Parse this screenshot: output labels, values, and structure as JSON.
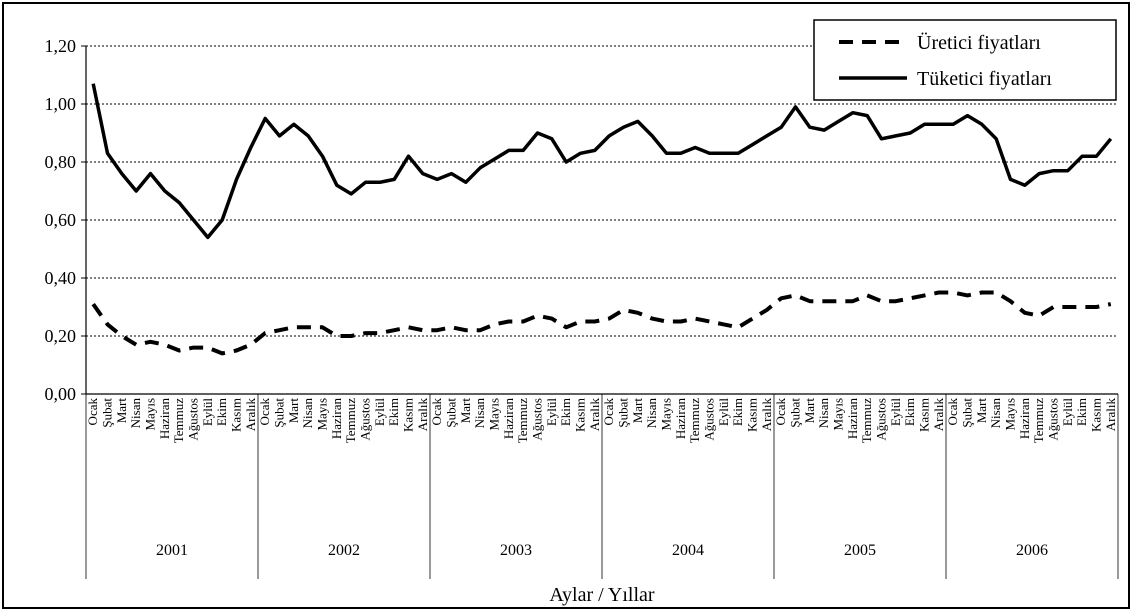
{
  "chart_data": {
    "type": "line",
    "title": "",
    "xlabel": "Aylar / Yıllar",
    "ylabel": "",
    "ylim": [
      0,
      1.2
    ],
    "yticks": [
      "0,00",
      "0,20",
      "0,40",
      "0,60",
      "0,80",
      "1,00",
      "1,20"
    ],
    "grid": true,
    "legend_position": "top-right",
    "months": [
      "Ocak",
      "Şubat",
      "Mart",
      "Nisan",
      "Mayıs",
      "Haziran",
      "Temmuz",
      "Ağustos",
      "Eylül",
      "Ekim",
      "Kasım",
      "Aralık"
    ],
    "years": [
      "2001",
      "2002",
      "2003",
      "2004",
      "2005",
      "2006"
    ],
    "series": [
      {
        "name": "Üretici fiyatları",
        "style": "dashed",
        "color": "#000000",
        "values": [
          0.31,
          0.24,
          0.2,
          0.17,
          0.18,
          0.17,
          0.15,
          0.16,
          0.16,
          0.14,
          0.15,
          0.17,
          0.21,
          0.22,
          0.23,
          0.23,
          0.23,
          0.2,
          0.2,
          0.21,
          0.21,
          0.22,
          0.23,
          0.22,
          0.22,
          0.23,
          0.22,
          0.22,
          0.24,
          0.25,
          0.25,
          0.27,
          0.26,
          0.23,
          0.25,
          0.25,
          0.26,
          0.29,
          0.28,
          0.26,
          0.25,
          0.25,
          0.26,
          0.25,
          0.24,
          0.23,
          0.26,
          0.29,
          0.33,
          0.34,
          0.32,
          0.32,
          0.32,
          0.32,
          0.34,
          0.32,
          0.32,
          0.33,
          0.34,
          0.35,
          0.35,
          0.34,
          0.35,
          0.35,
          0.32,
          0.28,
          0.27,
          0.3,
          0.3,
          0.3,
          0.3,
          0.31
        ]
      },
      {
        "name": "Tüketici fiyatları",
        "style": "solid",
        "color": "#000000",
        "values": [
          1.07,
          0.83,
          0.76,
          0.7,
          0.76,
          0.7,
          0.66,
          0.6,
          0.54,
          0.6,
          0.74,
          0.85,
          0.95,
          0.89,
          0.93,
          0.89,
          0.82,
          0.72,
          0.69,
          0.73,
          0.73,
          0.74,
          0.82,
          0.76,
          0.74,
          0.76,
          0.73,
          0.78,
          0.81,
          0.84,
          0.84,
          0.9,
          0.88,
          0.8,
          0.83,
          0.84,
          0.89,
          0.92,
          0.94,
          0.89,
          0.83,
          0.83,
          0.85,
          0.83,
          0.83,
          0.83,
          0.86,
          0.89,
          0.92,
          0.99,
          0.92,
          0.91,
          0.94,
          0.97,
          0.96,
          0.88,
          0.89,
          0.9,
          0.93,
          0.93,
          0.93,
          0.96,
          0.93,
          0.88,
          0.74,
          0.72,
          0.76,
          0.77,
          0.77,
          0.82,
          0.82,
          0.88
        ]
      }
    ]
  }
}
